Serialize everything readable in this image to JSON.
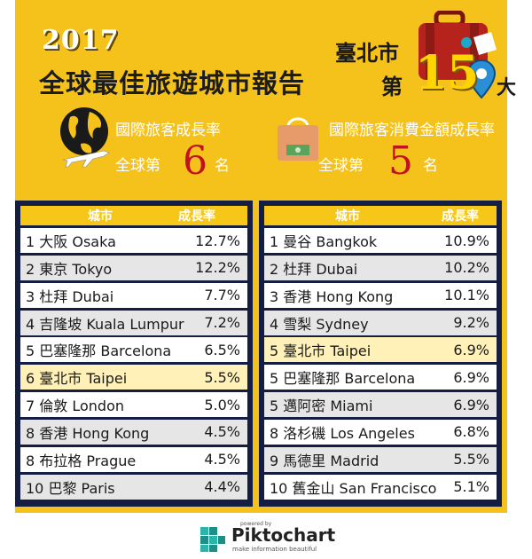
{
  "header": {
    "year": "2017",
    "title": "全球最佳旅遊城市報告",
    "city": "臺北市",
    "rank_prefix": "第",
    "rank_number": "15",
    "rank_suffix": "大"
  },
  "stats": [
    {
      "label": "國際旅客成長率",
      "prefix": "全球第",
      "number": "6",
      "suffix": "名",
      "icon": "globe-plane-icon"
    },
    {
      "label": "國際旅客消費金額成長率",
      "prefix": "全球第",
      "number": "5",
      "suffix": "名",
      "icon": "shopping-bag-icon"
    }
  ],
  "tables": [
    {
      "headers": [
        "城市",
        "成長率"
      ],
      "rows": [
        {
          "city": "1 大阪 Osaka",
          "rate": "12.7%"
        },
        {
          "city": "2 東京 Tokyo",
          "rate": "12.2%"
        },
        {
          "city": "3 杜拜 Dubai",
          "rate": "7.7%"
        },
        {
          "city": "4 吉隆坡 Kuala Lumpur",
          "rate": "7.2%"
        },
        {
          "city": "5 巴塞隆那 Barcelona",
          "rate": "6.5%"
        },
        {
          "city": "6 臺北市 Taipei",
          "rate": "5.5%"
        },
        {
          "city": "7 倫敦 London",
          "rate": "5.0%"
        },
        {
          "city": "8 香港 Hong Kong",
          "rate": "4.5%"
        },
        {
          "city": "8 布拉格 Prague",
          "rate": "4.5%"
        },
        {
          "city": "10 巴黎 Paris",
          "rate": "4.4%"
        }
      ]
    },
    {
      "headers": [
        "城市",
        "成長率"
      ],
      "rows": [
        {
          "city": "1 曼谷 Bangkok",
          "rate": "10.9%"
        },
        {
          "city": "2 杜拜 Dubai",
          "rate": "10.2%"
        },
        {
          "city": "3 香港 Hong Kong",
          "rate": "10.1%"
        },
        {
          "city": "4 雪梨 Sydney",
          "rate": "9.2%"
        },
        {
          "city": "5 臺北市 Taipei",
          "rate": "6.9%"
        },
        {
          "city": "5 巴塞隆那 Barcelona",
          "rate": "6.9%"
        },
        {
          "city": "5 邁阿密 Miami",
          "rate": "6.9%"
        },
        {
          "city": "8 洛杉磯 Los Angeles",
          "rate": "6.8%"
        },
        {
          "city": "9 馬德里 Madrid",
          "rate": "5.5%"
        },
        {
          "city": "10 舊金山 San Francisco",
          "rate": "5.1%"
        }
      ]
    }
  ],
  "footer": {
    "powered_by": "powered by",
    "brand": "Piktochart",
    "tagline": "make information beautiful"
  },
  "colors": {
    "panel": "#f5c21b",
    "table_bg": "#141d42",
    "highlight_row": "#fff1b8",
    "rank_number": "#c1121f"
  }
}
